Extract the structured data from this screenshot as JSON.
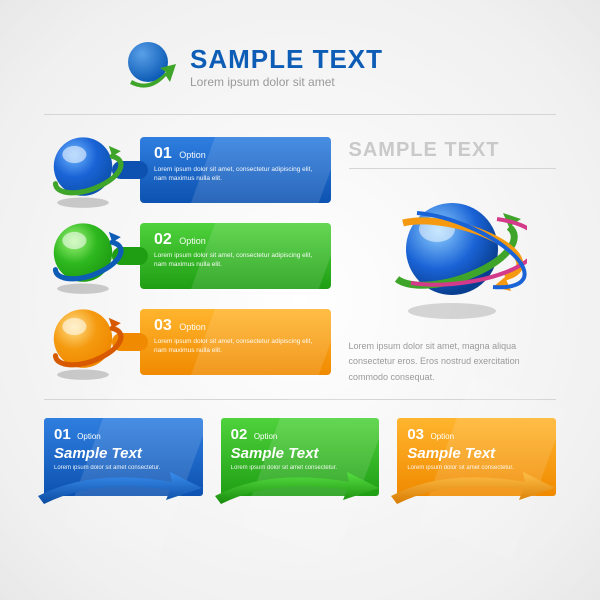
{
  "header": {
    "title": "SAMPLE TEXT",
    "subtitle": "Lorem ipsum dolor sit amet",
    "title_color": "#0d5cb6",
    "logo": {
      "circle_color": "#0d5cb6",
      "arrow_color": "#3fa52a"
    }
  },
  "banners": [
    {
      "num": "01",
      "opt": "Option",
      "txt": "Lorem ipsum dolor sit amet, consectetur adipiscing elit, nam maximus nulla elit.",
      "body_gradient_top": "#2f7fe0",
      "body_gradient_bottom": "#0d52b0",
      "arrow_color": "#1a63c4",
      "connector_color": "#0d52b0",
      "sphere_main": "#1a63d6",
      "sphere_light": "#6fb6ff",
      "orbit_color": "#3fa52a"
    },
    {
      "num": "02",
      "opt": "Option",
      "txt": "Lorem ipsum dolor sit amet, consectetur adipiscing elit, nam maximus nulla elit.",
      "body_gradient_top": "#4fd23c",
      "body_gradient_bottom": "#1f9e14",
      "arrow_color": "#2fb020",
      "connector_color": "#1f9e14",
      "sphere_main": "#2fb81f",
      "sphere_light": "#9ff57a",
      "orbit_color": "#0d5cb6"
    },
    {
      "num": "03",
      "opt": "Option",
      "txt": "Lorem ipsum dolor sit amet, consectetur adipiscing elit, nam maximus nulla elit.",
      "body_gradient_top": "#ffb52e",
      "body_gradient_bottom": "#f08a00",
      "arrow_color": "#f59a10",
      "connector_color": "#f08a00",
      "sphere_main": "#f59a10",
      "sphere_light": "#ffe18a",
      "orbit_color": "#d85a00"
    }
  ],
  "side": {
    "title": "SAMPLE TEXT",
    "paragraph": "Lorem ipsum dolor sit amet, magna aliqua consectetur eros. Eros nostrud exercitation commodo consequat.",
    "globe_sphere_main": "#1a63d6",
    "globe_sphere_light": "#8fd0ff",
    "orbit_colors": [
      "#3fa52a",
      "#f59a10",
      "#d43a8a",
      "#1a63d6"
    ]
  },
  "cards": [
    {
      "num": "01",
      "opt": "Option",
      "title": "Sample Text",
      "lorem": "Lorem ipsum dolor sit amet consectetur.",
      "bg_top": "#2f7fe0",
      "bg_bottom": "#0d52b0",
      "arrow_main": "#3a8ef0",
      "arrow_dark": "#0b4aa0"
    },
    {
      "num": "02",
      "opt": "Option",
      "title": "Sample Text",
      "lorem": "Lorem ipsum dolor sit amet consectetur.",
      "bg_top": "#4fd23c",
      "bg_bottom": "#1f9e14",
      "arrow_main": "#58e042",
      "arrow_dark": "#168a0c"
    },
    {
      "num": "03",
      "opt": "Option",
      "title": "Sample Text",
      "lorem": "Lorem ipsum dolor sit amet consectetur.",
      "bg_top": "#ffb52e",
      "bg_bottom": "#f08a00",
      "arrow_main": "#ffc04a",
      "arrow_dark": "#d87a00"
    }
  ],
  "background_color": "#ffffff"
}
